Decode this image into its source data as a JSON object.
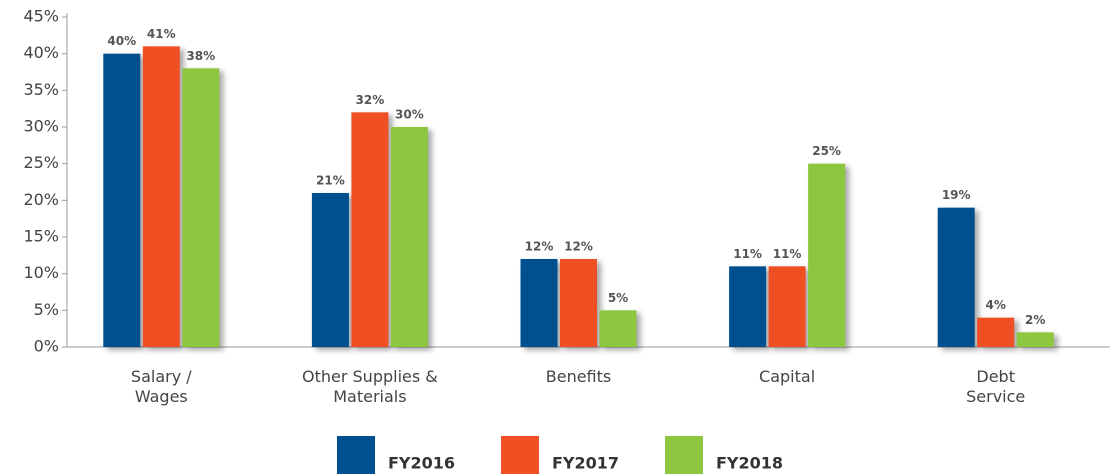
{
  "chart_data": {
    "type": "bar",
    "categories": [
      "Salary / Wages",
      "Other Supplies & Materials",
      "Benefits",
      "Capital",
      "Debt Service"
    ],
    "series": [
      {
        "name": "FY2016",
        "color": "#00508f",
        "values": [
          40,
          21,
          12,
          11,
          19
        ],
        "value_labels": [
          "40%",
          "21%",
          "12%",
          "11%",
          "19%"
        ]
      },
      {
        "name": "FY2017",
        "color": "#f04e23",
        "values": [
          41,
          32,
          12,
          11,
          4
        ],
        "value_labels": [
          "41%",
          "32%",
          "12%",
          "11%",
          "4%"
        ]
      },
      {
        "name": "FY2018",
        "color": "#8dc63f",
        "values": [
          38,
          30,
          5,
          25,
          2
        ],
        "value_labels": [
          "38%",
          "30%",
          "5%",
          "25%",
          "2%"
        ]
      }
    ],
    "ylim": [
      0,
      45
    ],
    "yticks": [
      {
        "value": 0,
        "label": "0%"
      },
      {
        "value": 5,
        "label": "5%"
      },
      {
        "value": 10,
        "label": "10%"
      },
      {
        "value": 15,
        "label": "15%"
      },
      {
        "value": 20,
        "label": "20%"
      },
      {
        "value": 25,
        "label": "25%"
      },
      {
        "value": 30,
        "label": "30%"
      },
      {
        "value": 35,
        "label": "35%"
      },
      {
        "value": 40,
        "label": "40%"
      },
      {
        "value": 45,
        "label": "45%"
      }
    ],
    "legend": "bottom"
  }
}
